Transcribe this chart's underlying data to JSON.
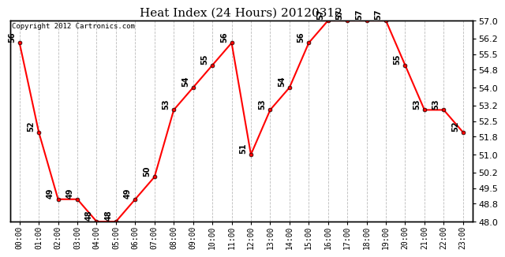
{
  "title": "Heat Index (24 Hours) 20120312",
  "copyright": "Copyright 2012 Cartronics.com",
  "hours": [
    "00:00",
    "01:00",
    "02:00",
    "03:00",
    "04:00",
    "05:00",
    "06:00",
    "07:00",
    "08:00",
    "09:00",
    "10:00",
    "11:00",
    "12:00",
    "13:00",
    "14:00",
    "15:00",
    "16:00",
    "17:00",
    "18:00",
    "19:00",
    "20:00",
    "21:00",
    "22:00",
    "23:00"
  ],
  "values": [
    56,
    52,
    49,
    49,
    48,
    48,
    49,
    50,
    53,
    54,
    55,
    56,
    51,
    53,
    54,
    56,
    57,
    57,
    57,
    57,
    55,
    53,
    53,
    52
  ],
  "ylim": [
    48.0,
    57.0
  ],
  "yticks": [
    48.0,
    48.8,
    49.5,
    50.2,
    51.0,
    51.8,
    52.5,
    53.2,
    54.0,
    54.8,
    55.5,
    56.2,
    57.0
  ],
  "line_color": "red",
  "marker_color": "red",
  "marker_edge_color": "black",
  "bg_color": "#ffffff",
  "grid_color": "#bbbbbb",
  "title_fontsize": 11,
  "label_fontsize": 7,
  "annot_fontsize": 7
}
